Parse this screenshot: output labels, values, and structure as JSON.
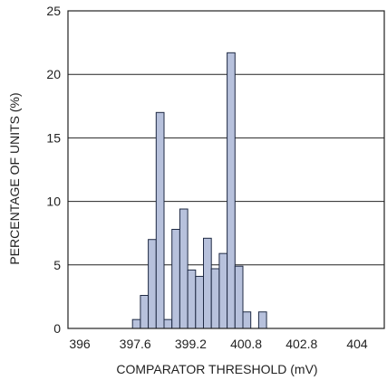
{
  "chart_data": {
    "type": "bar",
    "title": "",
    "xlabel": "COMPARATOR THRESHOLD (mV)",
    "ylabel": "PERCENTAGE OF UNITS (%)",
    "xlim": [
      396,
      404
    ],
    "ylim": [
      0,
      25
    ],
    "x_ticks": [
      "396",
      "397.6",
      "399.2",
      "400.8",
      "402.8",
      "404"
    ],
    "y_ticks": [
      "0",
      "5",
      "10",
      "15",
      "20",
      "25"
    ],
    "grid": "horizontal",
    "bar_color": "#b7c1dc",
    "bar_edge_color": "#1f2a44",
    "bins": [
      {
        "x": 397.6,
        "value": 0.7
      },
      {
        "x": 397.8,
        "value": 2.6
      },
      {
        "x": 398.0,
        "value": 7.0
      },
      {
        "x": 398.2,
        "value": 17.0
      },
      {
        "x": 398.4,
        "value": 0.7
      },
      {
        "x": 398.6,
        "value": 7.8
      },
      {
        "x": 398.8,
        "value": 9.4
      },
      {
        "x": 399.0,
        "value": 4.6
      },
      {
        "x": 399.2,
        "value": 4.1
      },
      {
        "x": 399.4,
        "value": 7.1
      },
      {
        "x": 399.6,
        "value": 4.7
      },
      {
        "x": 399.8,
        "value": 5.9
      },
      {
        "x": 400.0,
        "value": 21.7
      },
      {
        "x": 400.2,
        "value": 4.9
      },
      {
        "x": 400.4,
        "value": 1.3
      },
      {
        "x": 400.8,
        "value": 1.3
      }
    ]
  }
}
